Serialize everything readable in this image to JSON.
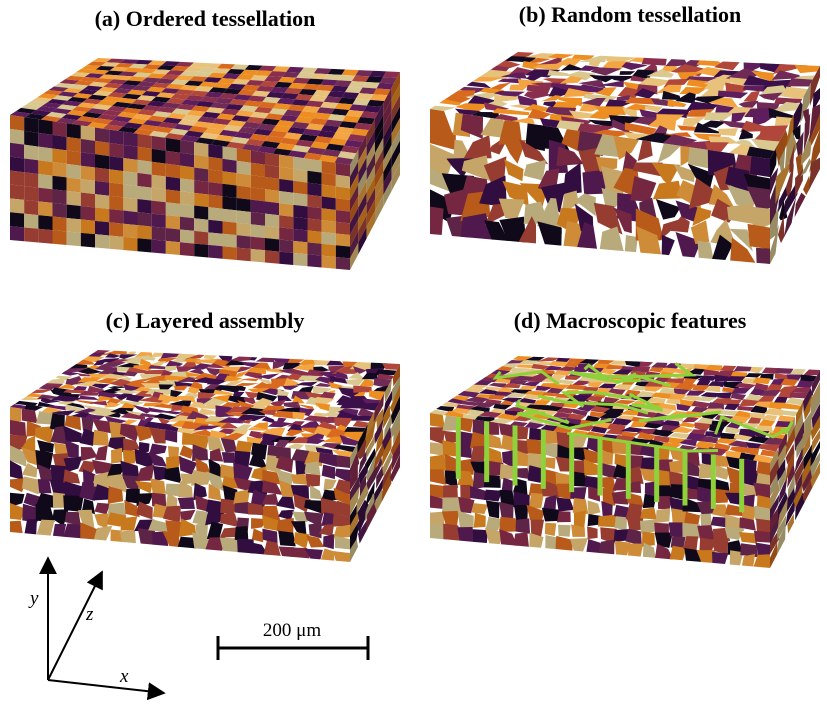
{
  "panels": [
    {
      "title": "(a) Ordered tessellation"
    },
    {
      "title": "(b) Random tessellation"
    },
    {
      "title": "(c) Layered assembly"
    },
    {
      "title": "(d) Macroscopic features"
    }
  ],
  "axes": {
    "y": "y",
    "z": "z",
    "x": "x"
  },
  "scale_bar": {
    "label": "200 μm"
  }
}
